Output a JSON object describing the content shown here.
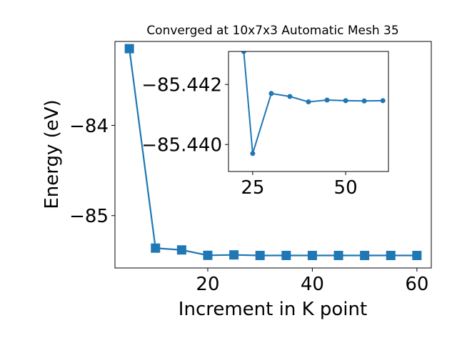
{
  "colors": {
    "series": "#1f77b4",
    "axes": "#000000",
    "background": "#ffffff"
  },
  "chart_data": [
    {
      "type": "line",
      "title": "Converged at 10x7x3 Automatic Mesh 35",
      "xlabel": "Increment in K point",
      "ylabel": "Energy (eV)",
      "xlim": [
        2.25,
        62.75
      ],
      "ylim": [
        -85.58,
        -83.07
      ],
      "xticks": [
        20,
        40,
        60
      ],
      "xtick_labels": [
        "20",
        "40",
        "60"
      ],
      "yticks": [
        -84,
        -85
      ],
      "ytick_labels": [
        "−84",
        "−85"
      ],
      "marker": "square",
      "grid": false,
      "series": [
        {
          "x": [
            5,
            10,
            15,
            20,
            25,
            30,
            35,
            40,
            45,
            50,
            55,
            60
          ],
          "y": [
            -83.15,
            -85.36,
            -85.38,
            -85.44,
            -85.435,
            -85.4415,
            -85.4413,
            -85.4415,
            -85.4414,
            -85.4415,
            -85.4415,
            -85.4415
          ]
        }
      ]
    },
    {
      "type": "line",
      "title": "",
      "xlabel": "",
      "ylabel": "",
      "xlim": [
        18.5,
        61.5
      ],
      "ylim": [
        -85.4391,
        -85.4431
      ],
      "xticks": [
        25,
        50
      ],
      "xtick_labels": [
        "25",
        "50"
      ],
      "yticks": [
        -85.442,
        -85.44
      ],
      "ytick_labels": [
        "−85.442",
        "−85.440"
      ],
      "marker": "circle",
      "grid": false,
      "series": [
        {
          "x": [
            22.6,
            25,
            30,
            35,
            40,
            45,
            50,
            55,
            60
          ],
          "y": [
            -85.4431,
            -85.4397,
            -85.4417,
            -85.4416,
            -85.44142,
            -85.44148,
            -85.44146,
            -85.44145,
            -85.44146
          ]
        }
      ]
    }
  ]
}
